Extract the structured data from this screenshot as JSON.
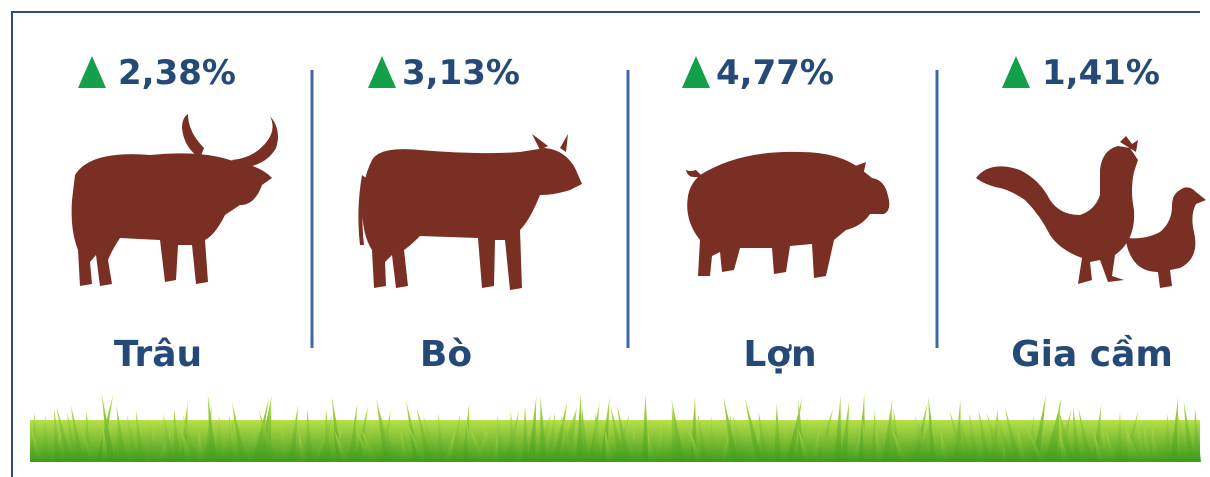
{
  "items": [
    {
      "change": "2,38%",
      "label": "Trâu"
    },
    {
      "change": "3,13%",
      "label": "Bò"
    },
    {
      "change": "4,77%",
      "label": "Lợn"
    },
    {
      "change": "1,41%",
      "label": "Gia cầm"
    }
  ]
}
